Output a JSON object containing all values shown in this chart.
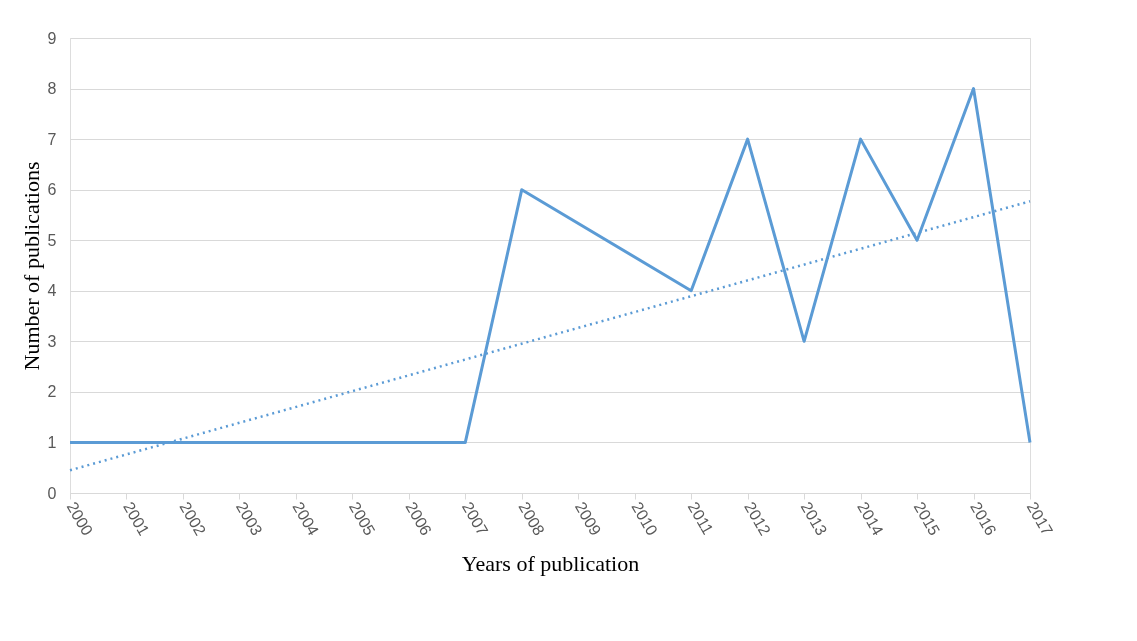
{
  "chart_data": {
    "type": "line",
    "xlabel": "Years of publication",
    "ylabel": "Number of  publications",
    "series": [
      {
        "color": "#5b9bd5",
        "line_style": "solid",
        "x": [
          2000,
          2001,
          2002,
          2003,
          2004,
          2005,
          2006,
          2007,
          2008,
          2011,
          2012,
          2013,
          2014,
          2015,
          2016,
          2017
        ],
        "values": [
          1,
          1,
          1,
          1,
          1,
          1,
          1,
          1,
          6,
          4,
          7,
          3,
          7,
          5,
          8,
          1
        ]
      },
      {
        "color": "#5b9bd5",
        "line_style": "dotted",
        "x": [
          2000,
          2017
        ],
        "values": [
          0.45,
          5.77
        ]
      }
    ],
    "xlim": [
      2000,
      2017
    ],
    "xticks": [
      2000,
      2001,
      2002,
      2003,
      2004,
      2005,
      2006,
      2007,
      2008,
      2009,
      2010,
      2011,
      2012,
      2013,
      2014,
      2015,
      2016,
      2017
    ],
    "ylim": [
      0,
      9
    ],
    "yticks": [
      0,
      1,
      2,
      3,
      4,
      5,
      6,
      7,
      8,
      9
    ],
    "grid": "y",
    "marker": "none"
  }
}
